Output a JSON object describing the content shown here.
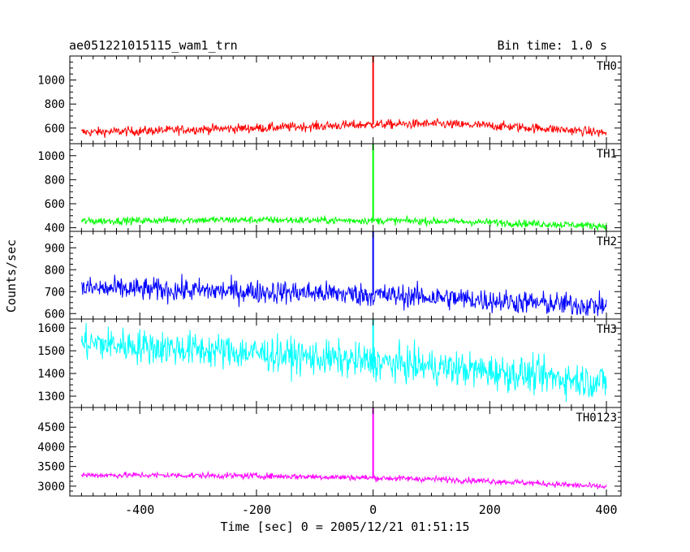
{
  "chart_data": {
    "type": "line",
    "title": "ae051221015115_wam1_trn",
    "subtitle": "Bin time: 1.0 s",
    "xlabel": "Time [sec] 0 = 2005/12/21 01:51:15",
    "ylabel": "Counts/sec",
    "xlim": [
      -520,
      425
    ],
    "x_ticks": [
      -400,
      -200,
      0,
      200,
      400
    ],
    "grid": false,
    "panels": [
      {
        "name": "TH0",
        "color": "#ff0000",
        "ylim": [
          470,
          1200
        ],
        "y_ticks": [
          600,
          800,
          1000
        ],
        "x": [
          -500,
          -400,
          -300,
          -200,
          -100,
          0,
          100,
          200,
          300,
          400
        ],
        "values": [
          565,
          575,
          590,
          600,
          615,
          630,
          635,
          620,
          595,
          560
        ],
        "noise": 28,
        "spike": {
          "x": 0,
          "value": 1200
        }
      },
      {
        "name": "TH1",
        "color": "#00ff00",
        "ylim": [
          370,
          1100
        ],
        "y_ticks": [
          400,
          600,
          800,
          1000
        ],
        "x": [
          -500,
          -400,
          -300,
          -200,
          -100,
          0,
          100,
          200,
          300,
          400
        ],
        "values": [
          455,
          460,
          465,
          465,
          462,
          460,
          455,
          445,
          430,
          415
        ],
        "noise": 22,
        "spike": {
          "x": 0,
          "value": 1100
        }
      },
      {
        "name": "TH2",
        "color": "#0000ff",
        "ylim": [
          575,
          975
        ],
        "y_ticks": [
          600,
          700,
          800,
          900
        ],
        "x": [
          -500,
          -400,
          -300,
          -200,
          -100,
          0,
          100,
          200,
          300,
          400
        ],
        "values": [
          715,
          710,
          705,
          700,
          695,
          685,
          675,
          660,
          645,
          635
        ],
        "noise": 38,
        "spike": {
          "x": 0,
          "value": 975
        }
      },
      {
        "name": "TH3",
        "color": "#00ffff",
        "ylim": [
          1250,
          1640
        ],
        "y_ticks": [
          1300,
          1400,
          1500,
          1600
        ],
        "x": [
          -500,
          -400,
          -300,
          -200,
          -100,
          0,
          100,
          200,
          300,
          400
        ],
        "values": [
          1535,
          1520,
          1505,
          1490,
          1470,
          1450,
          1430,
          1410,
          1385,
          1360
        ],
        "noise": 55,
        "spike": {
          "x": 0,
          "value": 1640
        }
      },
      {
        "name": "TH0123",
        "color": "#ff00ff",
        "ylim": [
          2750,
          5000
        ],
        "y_ticks": [
          3000,
          3500,
          4000,
          4500
        ],
        "x": [
          -500,
          -400,
          -300,
          -200,
          -100,
          0,
          100,
          200,
          300,
          400
        ],
        "values": [
          3280,
          3280,
          3270,
          3260,
          3240,
          3210,
          3180,
          3130,
          3060,
          2980
        ],
        "noise": 55,
        "spike": {
          "x": 0,
          "value": 5000
        }
      }
    ]
  }
}
